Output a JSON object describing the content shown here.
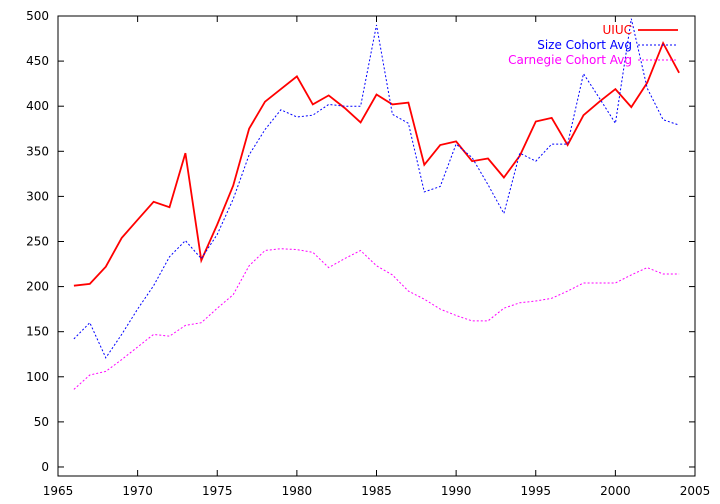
{
  "chart_data": {
    "type": "line",
    "title": "",
    "xlabel": "",
    "ylabel": "",
    "xlim": [
      1965,
      2005
    ],
    "ylim": [
      -10,
      500
    ],
    "xticks": [
      1965,
      1970,
      1975,
      1980,
      1985,
      1990,
      1995,
      2000,
      2005
    ],
    "yticks": [
      0,
      50,
      100,
      150,
      200,
      250,
      300,
      350,
      400,
      450,
      500
    ],
    "grid": false,
    "legend_position": "top-right",
    "series": [
      {
        "name": "UIUC",
        "color": "#ff0000",
        "style": "solid",
        "x": [
          1966,
          1967,
          1968,
          1969,
          1970,
          1971,
          1972,
          1973,
          1974,
          1975,
          1976,
          1977,
          1978,
          1979,
          1980,
          1981,
          1982,
          1983,
          1984,
          1985,
          1986,
          1987,
          1988,
          1989,
          1990,
          1991,
          1992,
          1993,
          1994,
          1995,
          1996,
          1997,
          1998,
          1999,
          2000,
          2001,
          2002,
          2003,
          2004
        ],
        "values": [
          201,
          203,
          222,
          254,
          274,
          294,
          288,
          348,
          229,
          269,
          312,
          375,
          405,
          419,
          433,
          402,
          412,
          398,
          382,
          413,
          402,
          404,
          335,
          357,
          361,
          339,
          342,
          321,
          345,
          383,
          387,
          357,
          390,
          405,
          419,
          399,
          426,
          470,
          437
        ]
      },
      {
        "name": "Size Cohort Avg",
        "color": "#0000ff",
        "style": "dotted",
        "x": [
          1966,
          1967,
          1968,
          1969,
          1970,
          1971,
          1972,
          1973,
          1974,
          1975,
          1976,
          1977,
          1978,
          1979,
          1980,
          1981,
          1982,
          1983,
          1984,
          1985,
          1986,
          1987,
          1988,
          1989,
          1990,
          1991,
          1992,
          1993,
          1994,
          1995,
          1996,
          1997,
          1998,
          1999,
          2000,
          2001,
          2002,
          2003,
          2004
        ],
        "values": [
          142,
          160,
          121,
          147,
          175,
          201,
          233,
          251,
          231,
          258,
          297,
          346,
          374,
          396,
          388,
          390,
          402,
          400,
          400,
          490,
          391,
          381,
          305,
          311,
          358,
          343,
          313,
          281,
          348,
          339,
          358,
          358,
          436,
          409,
          381,
          497,
          420,
          385,
          379
        ]
      },
      {
        "name": "Carnegie Cohort Avg",
        "color": "#ff00ff",
        "style": "dotted",
        "x": [
          1966,
          1967,
          1968,
          1969,
          1970,
          1971,
          1972,
          1973,
          1974,
          1975,
          1976,
          1977,
          1978,
          1979,
          1980,
          1981,
          1982,
          1983,
          1984,
          1985,
          1986,
          1987,
          1988,
          1989,
          1990,
          1991,
          1992,
          1993,
          1994,
          1995,
          1996,
          1997,
          1998,
          1999,
          2000,
          2001,
          2002,
          2003,
          2004
        ],
        "values": [
          86,
          102,
          106,
          119,
          133,
          147,
          145,
          157,
          160,
          176,
          191,
          223,
          240,
          242,
          241,
          238,
          221,
          231,
          240,
          223,
          213,
          195,
          186,
          175,
          168,
          162,
          162,
          176,
          182,
          184,
          187,
          195,
          204,
          204,
          204,
          213,
          221,
          214,
          214
        ]
      }
    ]
  }
}
